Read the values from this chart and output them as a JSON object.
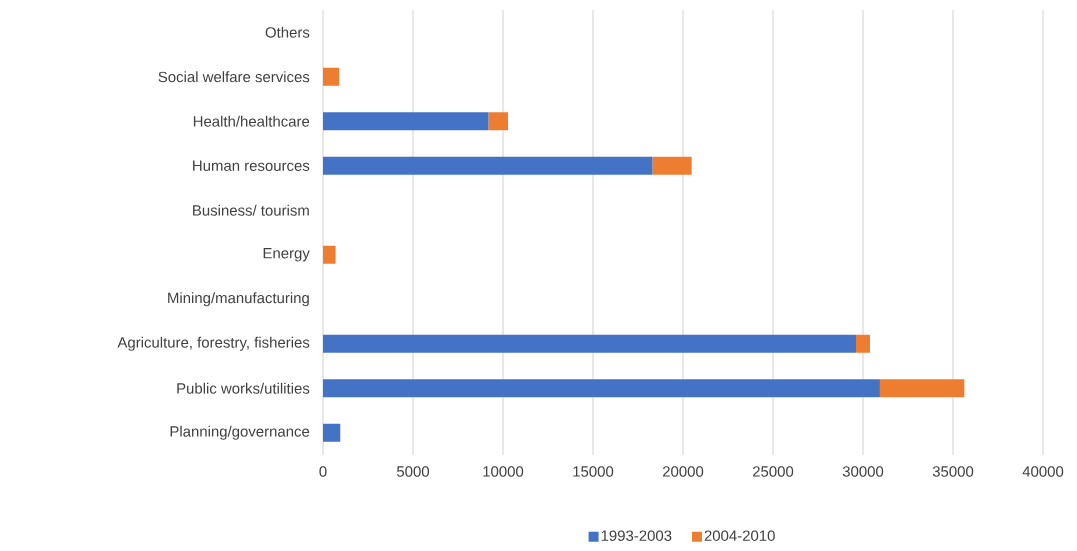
{
  "chart_data": {
    "type": "bar",
    "orientation": "horizontal",
    "stacked": true,
    "categories": [
      "Others",
      "Social welfare services",
      "Health/healthcare",
      "Human resources",
      "Business/ tourism",
      "Energy",
      "Mining/manufacturing",
      "Agriculture, forestry, fisheries",
      "Public works/utilities",
      "Planning/governance"
    ],
    "series": [
      {
        "name": "1993-2003",
        "color": "#4472c4",
        "values": [
          0,
          0,
          9190,
          18300,
          0,
          0,
          0,
          29610,
          30940,
          960
        ]
      },
      {
        "name": "2004-2010",
        "color": "#ed7d31",
        "values": [
          0,
          900,
          1090,
          2180,
          0,
          700,
          0,
          780,
          4690,
          0
        ]
      }
    ],
    "xlim": [
      0,
      40000
    ],
    "xticks": [
      0,
      5000,
      10000,
      15000,
      20000,
      25000,
      30000,
      35000,
      40000
    ],
    "grid": "x",
    "legend": "bottom"
  }
}
